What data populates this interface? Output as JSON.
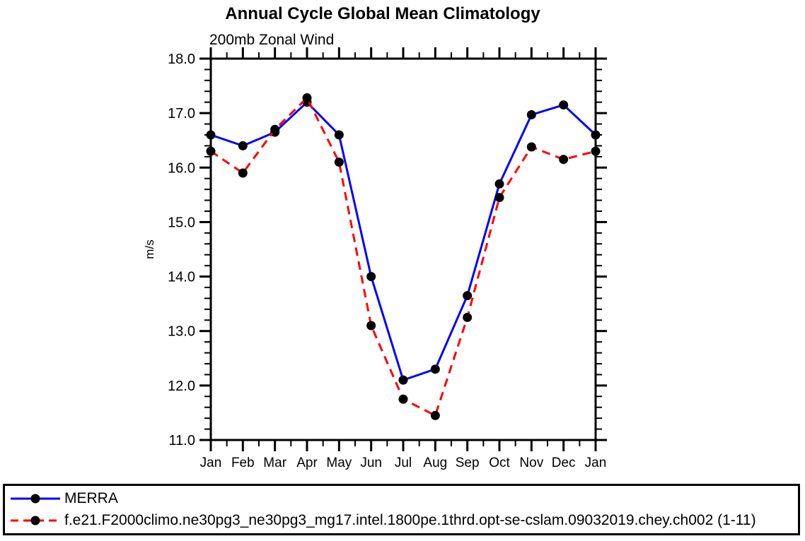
{
  "chart_data": {
    "type": "line",
    "title": "Annual Cycle Global Mean Climatology",
    "subtitle": "200mb Zonal Wind",
    "xlabel": "",
    "ylabel": "m/s",
    "x_categories": [
      "Jan",
      "Feb",
      "Mar",
      "Apr",
      "May",
      "Jun",
      "Jul",
      "Aug",
      "Sep",
      "Oct",
      "Nov",
      "Dec",
      "Jan"
    ],
    "ylim": [
      11.0,
      18.0
    ],
    "y_major_tick_labels": [
      "11.0",
      "12.0",
      "13.0",
      "14.0",
      "15.0",
      "16.0",
      "17.0",
      "18.0"
    ],
    "y_minor_step": 0.2,
    "grid": false,
    "legend_position": "bottom-box",
    "series": [
      {
        "name": "MERRA",
        "color": "#0000ff",
        "line_style": "solid",
        "marker": "filled-circle",
        "marker_color": "#000000",
        "values": [
          16.6,
          16.4,
          16.65,
          17.2,
          16.6,
          14.0,
          12.1,
          12.3,
          13.65,
          15.7,
          16.97,
          17.15,
          16.6
        ]
      },
      {
        "name": "f.e21.F2000climo.ne30pg3_ne30pg3_mg17.intel.1800pe.1thrd.opt-se-cslam.09032019.chey.ch002 (1-11)",
        "color": "#ff0000",
        "line_style": "dashed",
        "marker": "filled-circle",
        "marker_color": "#000000",
        "values": [
          16.3,
          15.9,
          16.7,
          17.28,
          16.1,
          13.1,
          11.75,
          11.45,
          13.25,
          15.45,
          16.38,
          16.15,
          16.3
        ]
      }
    ]
  },
  "colors": {
    "background": "#ffffff",
    "frame": "#000000",
    "merra_line": "#0000ff",
    "model_line": "#ff0000",
    "marker": "#000000"
  }
}
